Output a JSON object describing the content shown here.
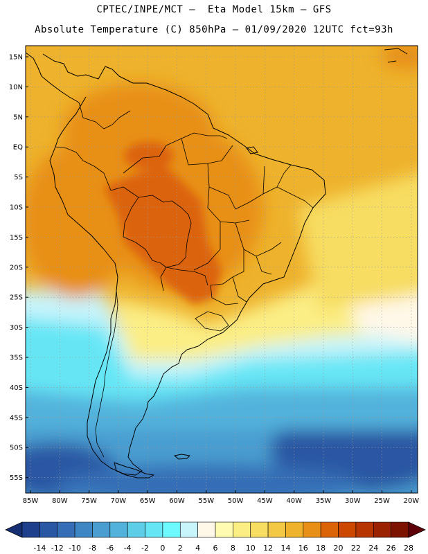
{
  "header": {
    "line1": "CPTEC/INPE/MCT –  Eta Model 15km – GFS",
    "line2": "Absolute Temperature (C) 850hPa – 01/09/2020 12UTC fct=93h"
  },
  "map": {
    "lat_labels": [
      "15N",
      "10N",
      "5N",
      "EQ",
      "5S",
      "10S",
      "15S",
      "20S",
      "25S",
      "30S",
      "35S",
      "40S",
      "45S",
      "50S",
      "55S"
    ],
    "lon_labels": [
      "85W",
      "80W",
      "75W",
      "70W",
      "65W",
      "60W",
      "55W",
      "50W",
      "45W",
      "40W",
      "35W",
      "30W",
      "25W",
      "20W"
    ]
  },
  "colorbar": {
    "labels": [
      "-14",
      "-12",
      "-10",
      "-8",
      "-6",
      "-4",
      "-2",
      "0",
      "2",
      "4",
      "6",
      "8",
      "10",
      "12",
      "14",
      "16",
      "18",
      "20",
      "22",
      "24",
      "26",
      "28"
    ],
    "colors": [
      "#1e3f8c",
      "#2a57a3",
      "#356eb6",
      "#3f86c4",
      "#4a9dd0",
      "#53b2dc",
      "#5dcde8",
      "#66e6f5",
      "#6ef8ff",
      "#c8f4fb",
      "#fff8e8",
      "#fffbb0",
      "#fbee85",
      "#f7dd62",
      "#f2c844",
      "#eeb22c",
      "#e88f18",
      "#dc6408",
      "#cc4800",
      "#b73500",
      "#9a2200",
      "#7c1200"
    ],
    "endpoint_colors": [
      "#162f72",
      "#5d0008"
    ]
  },
  "field_colors": {
    "cold": "#2a57a3",
    "cool": "#53b2dc",
    "cyan": "#6ef8ff",
    "pale": "#fff8e8",
    "yellow": "#f7dd62",
    "warm": "#eeb22c",
    "orange": "#e88f18",
    "hot": "#dc6408"
  }
}
